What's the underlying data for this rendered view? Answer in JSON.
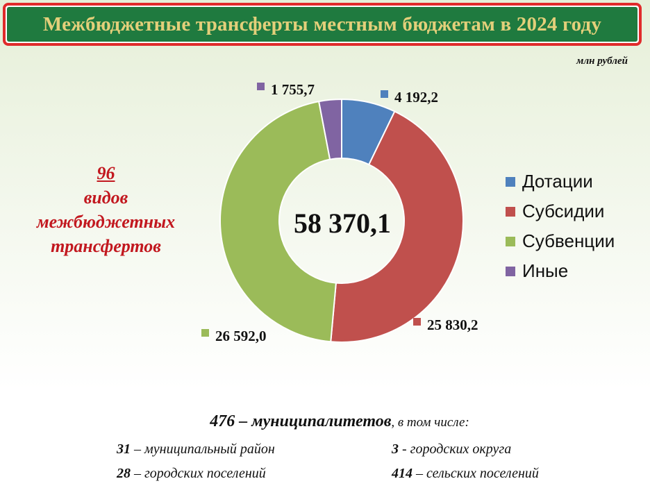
{
  "title": "Межбюджетные трансферты местным бюджетам в 2024 году",
  "unit": "млн рублей",
  "types_block": {
    "count": "96",
    "line1": "видов",
    "line2": "межбюджетных",
    "line3": "трансфертов"
  },
  "colors": {
    "title_bg": "#1f7a3f",
    "title_text": "#e3cf7a",
    "title_border": "#e02b2b",
    "accent_text": "#c2181f"
  },
  "chart_data": {
    "type": "pie",
    "variant": "donut",
    "total_label": "58 370,1",
    "slices": [
      {
        "name": "Дотации",
        "value": 4192.2,
        "label": "4 192,2",
        "color": "#4f81bd"
      },
      {
        "name": "Субсидии",
        "value": 25830.2,
        "label": "25 830,2",
        "color": "#c0504d"
      },
      {
        "name": "Субвенции",
        "value": 26592.0,
        "label": "26 592,0",
        "color": "#9bbb59"
      },
      {
        "name": "Иные",
        "value": 1755.7,
        "label": "1 755,7",
        "color": "#8064a2"
      }
    ],
    "legend_position": "right"
  },
  "municipalities": {
    "total_number": "476",
    "total_text": "– муниципалитетов",
    "total_tail": ", в том числе:",
    "items": [
      {
        "number": "31",
        "text": " – муниципальный район"
      },
      {
        "number": "3",
        "text": " - городских округа"
      },
      {
        "number": "28",
        "text": " – городских поселений"
      },
      {
        "number": "414",
        "text": " – сельских поселений"
      }
    ]
  }
}
